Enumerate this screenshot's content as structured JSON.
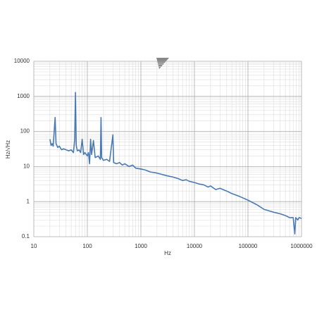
{
  "chart_data": {
    "type": "line",
    "x_label": "Hz",
    "y_label": "Hz/√Hz",
    "x_log": true,
    "y_log": true,
    "grid": true,
    "xlim": [
      10,
      1000000
    ],
    "ylim": [
      0.1,
      10000
    ],
    "xticks": [
      10,
      100,
      1000,
      10000,
      100000,
      1000000
    ],
    "yticks": [
      0.1,
      1,
      10,
      100,
      1000,
      10000
    ],
    "series": [
      {
        "color": "#4a7ab5",
        "x": [
          20,
          21,
          22,
          23,
          25,
          26,
          28,
          30,
          33,
          36,
          40,
          45,
          50,
          55,
          58,
          60,
          62,
          65,
          70,
          75,
          80,
          85,
          90,
          100,
          105,
          110,
          115,
          120,
          130,
          140,
          160,
          175,
          180,
          185,
          200,
          230,
          260,
          300,
          310,
          350,
          400,
          450,
          500,
          600,
          700,
          800,
          1000,
          1200,
          1500,
          2000,
          3000,
          4000,
          5000,
          6000,
          7000,
          8000,
          10000,
          12000,
          15000,
          18000,
          20000,
          25000,
          30000,
          40000,
          50000,
          70000,
          100000,
          150000,
          200000,
          300000,
          400000,
          500000,
          600000,
          700000,
          750000,
          780000,
          850000,
          900000,
          1000000
        ],
        "values": [
          60,
          40,
          45,
          38,
          250,
          45,
          35,
          38,
          30,
          32,
          30,
          28,
          30,
          25,
          60,
          1300,
          40,
          28,
          30,
          25,
          60,
          22,
          25,
          20,
          25,
          12,
          60,
          22,
          55,
          18,
          20,
          16,
          250,
          18,
          15,
          16,
          14,
          80,
          13,
          12,
          13,
          11,
          12,
          10,
          11,
          9,
          8.5,
          8,
          7,
          6.5,
          5.5,
          5,
          4.5,
          4,
          4.2,
          3.8,
          3.5,
          3.2,
          3,
          2.6,
          2.8,
          2.2,
          2.4,
          2,
          1.7,
          1.4,
          1.1,
          0.8,
          0.6,
          0.5,
          0.45,
          0.4,
          0.35,
          0.35,
          0.12,
          0.35,
          0.3,
          0.35,
          0.33
        ]
      }
    ]
  }
}
